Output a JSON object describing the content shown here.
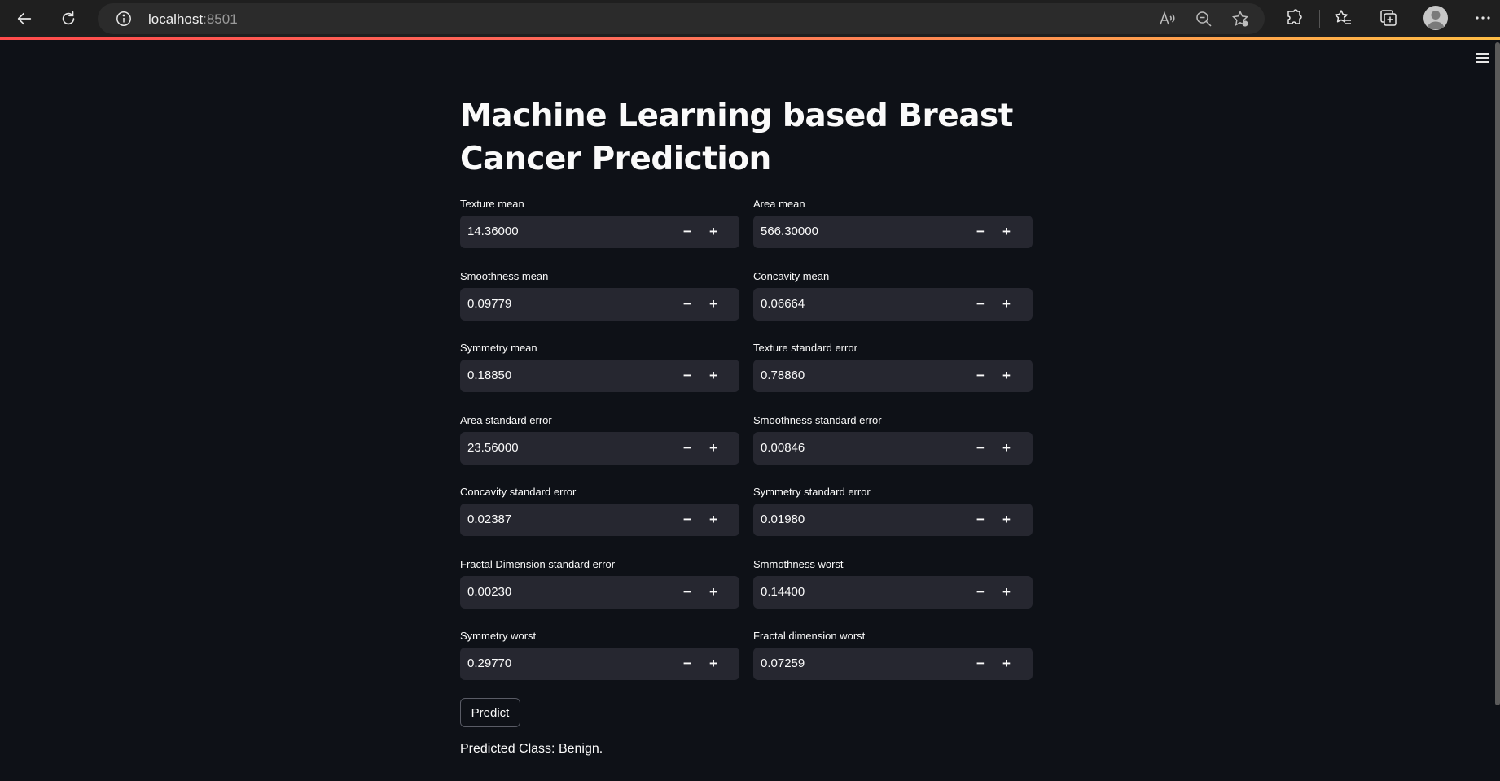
{
  "browser": {
    "url_host": "localhost",
    "url_port": ":8501",
    "icons": [
      "back-arrow-icon",
      "refresh-icon",
      "info-icon",
      "read-aloud-icon",
      "zoom-out-icon",
      "favorite-add-icon",
      "extensions-icon",
      "favorites-icon",
      "collections-icon",
      "profile-avatar-icon",
      "more-icon"
    ]
  },
  "app": {
    "title": "Machine Learning based Breast Cancer Prediction",
    "fields": [
      {
        "label": "Texture mean",
        "value": "14.36000"
      },
      {
        "label": "Area mean",
        "value": "566.30000"
      },
      {
        "label": "Smoothness mean",
        "value": "0.09779"
      },
      {
        "label": "Concavity mean",
        "value": "0.06664"
      },
      {
        "label": "Symmetry mean",
        "value": "0.18850"
      },
      {
        "label": "Texture standard error",
        "value": "0.78860"
      },
      {
        "label": "Area standard error",
        "value": "23.56000"
      },
      {
        "label": "Smoothness standard error",
        "value": "0.00846"
      },
      {
        "label": "Concavity standard error",
        "value": "0.02387"
      },
      {
        "label": "Symmetry standard error",
        "value": "0.01980"
      },
      {
        "label": "Fractal Dimension standard error",
        "value": "0.00230"
      },
      {
        "label": "Smmothness worst",
        "value": "0.14400"
      },
      {
        "label": "Symmetry worst",
        "value": "0.29770"
      },
      {
        "label": "Fractal dimension worst",
        "value": "0.07259"
      }
    ],
    "stepper_minus": "−",
    "stepper_plus": "+",
    "predict_label": "Predict",
    "result_text": "Predicted Class: Benign."
  },
  "colors": {
    "background": "#0e1117",
    "input_bg": "#262730",
    "accent": "#ff4b4b",
    "text": "#fafafa"
  }
}
